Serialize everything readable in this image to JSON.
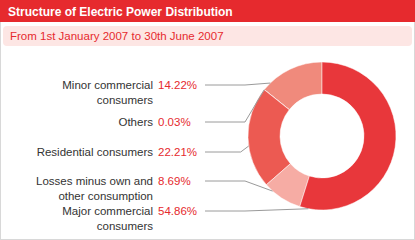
{
  "chart_data": {
    "type": "donut",
    "title": "Structure of Electric Power Distribution",
    "subtitle": "From 1st January 2007 to 30th June 2007",
    "categories": [
      "Minor commercial consumers",
      "Others",
      "Residential consumers",
      "Losses minus own and other consumption",
      "Major commercial consumers"
    ],
    "values": [
      14.22,
      0.03,
      22.21,
      8.69,
      54.86
    ],
    "value_labels": [
      "14.22%",
      "0.03%",
      "22.21%",
      "8.69%",
      "54.86%"
    ],
    "colors": [
      "#f08a7c",
      "#e9554c",
      "#ec5a52",
      "#f6aca4",
      "#e8373b"
    ],
    "data_labels": true
  }
}
